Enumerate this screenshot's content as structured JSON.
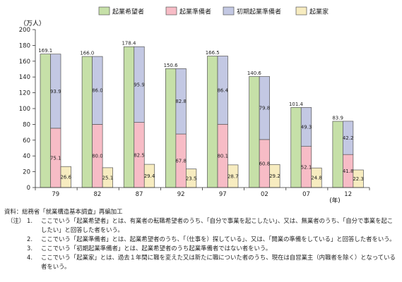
{
  "chart_data": {
    "type": "bar",
    "unit_label": "（万人）",
    "year_label": "(年)",
    "categories": [
      "79",
      "82",
      "87",
      "92",
      "97",
      "02",
      "07",
      "12"
    ],
    "ylim": [
      0,
      200
    ],
    "yticks": [
      0,
      20,
      40,
      60,
      80,
      100,
      120,
      140,
      160,
      180,
      200
    ],
    "legend": [
      "起業希望者",
      "起業準備者",
      "初期起業準備者",
      "起業家"
    ],
    "series": [
      {
        "name": "起業希望者",
        "color": "#c6e0a8",
        "values": [
          169.1,
          166.0,
          178.4,
          150.6,
          166.5,
          140.6,
          101.4,
          83.9
        ]
      },
      {
        "name": "起業準備者",
        "color": "#f7bcc6",
        "values": [
          75.1,
          80.0,
          82.5,
          67.8,
          80.1,
          60.8,
          52.1,
          41.8
        ]
      },
      {
        "name": "初期起業準備者",
        "color": "#c3c8e3",
        "values": [
          93.9,
          86.0,
          95.9,
          82.8,
          86.4,
          79.8,
          49.3,
          42.2
        ]
      },
      {
        "name": "起業家",
        "color": "#f7ecc0",
        "values": [
          26.6,
          25.1,
          29.4,
          23.5,
          28.7,
          29.2,
          24.8,
          22.3
        ]
      }
    ]
  },
  "notes": {
    "source": "資料：総務省「就業構造基本調査」再編加工",
    "tag": "（注）",
    "items": [
      {
        "num": "1.",
        "text": "ここでいう「起業希望者」とは、有業者の転職希望者のうち、「自分で事業を起こしたい」、又は、無業者のうち、「自分で事業を起こしたい」と回答した者をいう。"
      },
      {
        "num": "2.",
        "text": "ここでいう「起業準備者」とは、起業希望者のうち、「（仕事を）探している」、又は、「開業の準備をしている」と回答した者をいう。"
      },
      {
        "num": "3.",
        "text": "ここでいう「初期起業準備者」とは、起業希望者のうち起業準備者ではない者をいう。"
      },
      {
        "num": "4.",
        "text": "ここでいう「起業家」とは、過去１年間に職を変えた又は新たに職についた者のうち、現在は自営業主（内職者を除く）となっている者をいう。"
      }
    ]
  }
}
